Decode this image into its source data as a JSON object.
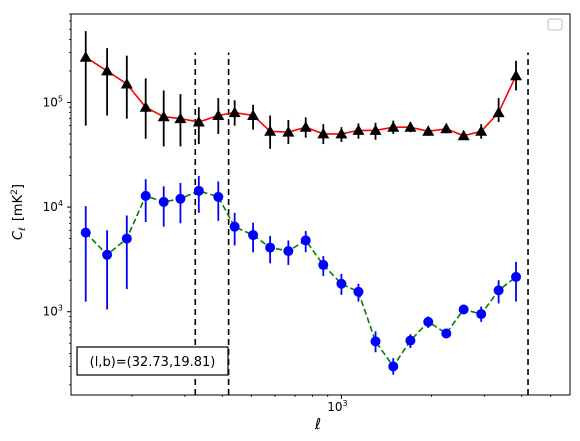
{
  "chart_data": {
    "type": "scatter",
    "x_scale": "log",
    "y_scale": "log",
    "xlim": [
      125,
      5800
    ],
    "ylim": [
      160,
      700000
    ],
    "xlabel": "ℓ",
    "ylabel_main": "C",
    "ylabel_sub": "ℓ",
    "ylabel_unit": "[mK",
    "ylabel_unit_sup": "2",
    "ylabel_unit_close": "]",
    "x_ticks": [
      {
        "value": 1000,
        "base": "10",
        "exp": "3"
      }
    ],
    "y_ticks": [
      {
        "value": 1000,
        "base": "10",
        "exp": "3"
      },
      {
        "value": 10000,
        "base": "10",
        "exp": "4"
      },
      {
        "value": 100000,
        "base": "10",
        "exp": "5"
      }
    ],
    "vlines": [
      {
        "x": 325,
        "ymax": 300000,
        "color": "#000000"
      },
      {
        "x": 420,
        "ymax": 300000,
        "color": "#000000"
      },
      {
        "x": 4200,
        "ymax": 300000,
        "color": "#000000"
      }
    ],
    "annotation": "(l,b)=(32.73,19.81)",
    "legend_position": "top-right",
    "series": [
      {
        "color": "#ff0000",
        "errorbar_color": "#000000",
        "marker": "triangle",
        "marker_color": "#000000",
        "line": "solid",
        "points": [
          {
            "x": 140,
            "y": 270000,
            "lo": 60000,
            "hi": 480000
          },
          {
            "x": 165,
            "y": 200000,
            "lo": 75000,
            "hi": 330000
          },
          {
            "x": 192,
            "y": 150000,
            "lo": 70000,
            "hi": 280000
          },
          {
            "x": 222,
            "y": 90000,
            "lo": 45000,
            "hi": 170000
          },
          {
            "x": 255,
            "y": 73000,
            "lo": 38000,
            "hi": 130000
          },
          {
            "x": 290,
            "y": 70000,
            "lo": 38000,
            "hi": 120000
          },
          {
            "x": 334,
            "y": 65000,
            "lo": 40000,
            "hi": 90000
          },
          {
            "x": 388,
            "y": 75000,
            "lo": 50000,
            "hi": 110000
          },
          {
            "x": 440,
            "y": 80000,
            "lo": 60000,
            "hi": 105000
          },
          {
            "x": 507,
            "y": 75000,
            "lo": 55000,
            "hi": 95000
          },
          {
            "x": 578,
            "y": 53000,
            "lo": 36000,
            "hi": 75000
          },
          {
            "x": 665,
            "y": 52000,
            "lo": 40000,
            "hi": 68000
          },
          {
            "x": 760,
            "y": 58000,
            "lo": 46000,
            "hi": 72000
          },
          {
            "x": 870,
            "y": 50000,
            "lo": 40000,
            "hi": 62000
          },
          {
            "x": 1000,
            "y": 50000,
            "lo": 42000,
            "hi": 58000
          },
          {
            "x": 1140,
            "y": 54000,
            "lo": 45000,
            "hi": 63000
          },
          {
            "x": 1300,
            "y": 54000,
            "lo": 44000,
            "hi": 64000
          },
          {
            "x": 1490,
            "y": 58000,
            "lo": 50000,
            "hi": 67000
          },
          {
            "x": 1700,
            "y": 58000,
            "lo": 52000,
            "hi": 65000
          },
          {
            "x": 1950,
            "y": 53000,
            "lo": 48000,
            "hi": 58000
          },
          {
            "x": 2240,
            "y": 56000,
            "lo": 51000,
            "hi": 62000
          },
          {
            "x": 2560,
            "y": 48000,
            "lo": 44000,
            "hi": 53000
          },
          {
            "x": 2930,
            "y": 53000,
            "lo": 45000,
            "hi": 62000
          },
          {
            "x": 3350,
            "y": 80000,
            "lo": 65000,
            "hi": 110000
          },
          {
            "x": 3830,
            "y": 180000,
            "lo": 130000,
            "hi": 250000
          }
        ]
      },
      {
        "color": "#008000",
        "errorbar_color": "#0000ff",
        "marker": "circle",
        "marker_color": "#0000ff",
        "line": "dashed",
        "points": [
          {
            "x": 140,
            "y": 5700,
            "lo": 1250,
            "hi": 10200
          },
          {
            "x": 165,
            "y": 3500,
            "lo": 1050,
            "hi": 6000
          },
          {
            "x": 192,
            "y": 5000,
            "lo": 1650,
            "hi": 8300
          },
          {
            "x": 222,
            "y": 12800,
            "lo": 7200,
            "hi": 18500
          },
          {
            "x": 255,
            "y": 11200,
            "lo": 6500,
            "hi": 15800
          },
          {
            "x": 290,
            "y": 12000,
            "lo": 7000,
            "hi": 17000
          },
          {
            "x": 334,
            "y": 14300,
            "lo": 8800,
            "hi": 19800
          },
          {
            "x": 388,
            "y": 12500,
            "lo": 7400,
            "hi": 17600
          },
          {
            "x": 440,
            "y": 6500,
            "lo": 4300,
            "hi": 8800
          },
          {
            "x": 507,
            "y": 5400,
            "lo": 3700,
            "hi": 7100
          },
          {
            "x": 578,
            "y": 4100,
            "lo": 2900,
            "hi": 5300
          },
          {
            "x": 665,
            "y": 3800,
            "lo": 2800,
            "hi": 4800
          },
          {
            "x": 760,
            "y": 4800,
            "lo": 3700,
            "hi": 5900
          },
          {
            "x": 870,
            "y": 2800,
            "lo": 2200,
            "hi": 3400
          },
          {
            "x": 1000,
            "y": 1850,
            "lo": 1450,
            "hi": 2300
          },
          {
            "x": 1140,
            "y": 1550,
            "lo": 1250,
            "hi": 1850
          },
          {
            "x": 1300,
            "y": 520,
            "lo": 410,
            "hi": 650
          },
          {
            "x": 1490,
            "y": 300,
            "lo": 250,
            "hi": 360
          },
          {
            "x": 1700,
            "y": 530,
            "lo": 450,
            "hi": 610
          },
          {
            "x": 1950,
            "y": 800,
            "lo": 700,
            "hi": 900
          },
          {
            "x": 2240,
            "y": 620,
            "lo": 560,
            "hi": 690
          },
          {
            "x": 2560,
            "y": 1050,
            "lo": 960,
            "hi": 1150
          },
          {
            "x": 2930,
            "y": 950,
            "lo": 800,
            "hi": 1120
          },
          {
            "x": 3350,
            "y": 1600,
            "lo": 1200,
            "hi": 2000
          },
          {
            "x": 3830,
            "y": 2150,
            "lo": 1250,
            "hi": 3000
          }
        ]
      }
    ]
  }
}
